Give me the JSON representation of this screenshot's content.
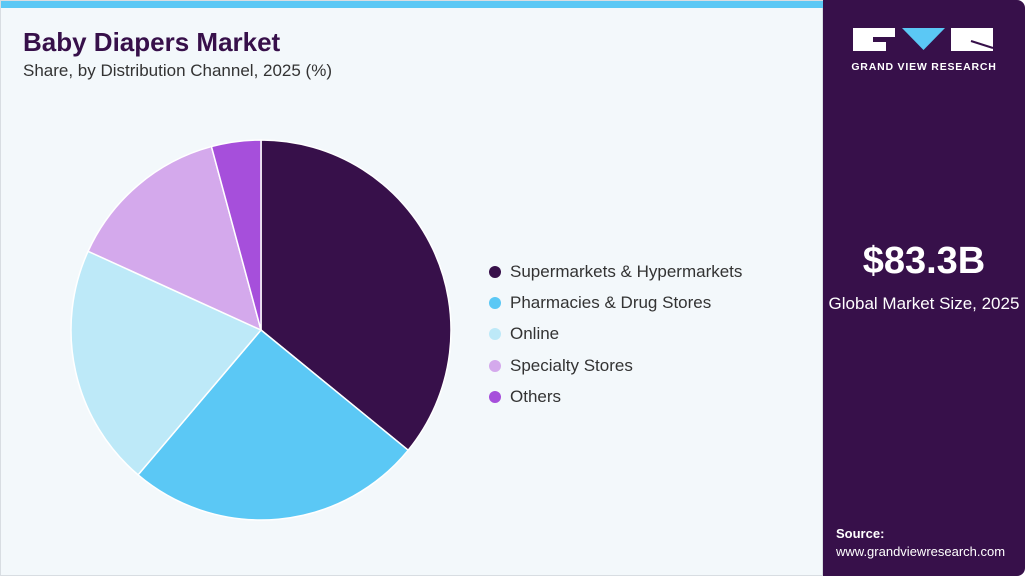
{
  "header": {
    "title": "Baby Diapers Market",
    "subtitle": "Share, by Distribution Channel, 2025 (%)"
  },
  "chart_data": {
    "type": "pie",
    "title": "Baby Diapers Market",
    "subtitle": "Share, by Distribution Channel, 2025 (%)",
    "legend_position": "right",
    "categories": [
      "Supermarkets & Hypermarkets",
      "Pharmacies & Drug Stores",
      "Online",
      "Specialty Stores",
      "Others"
    ],
    "values": [
      35.9,
      25.3,
      20.6,
      14.0,
      4.2
    ],
    "colors": [
      "#37104a",
      "#5bc8f5",
      "#bde9f8",
      "#d4a9ec",
      "#a64fdb"
    ]
  },
  "sidebar": {
    "logo_text": "GRAND VIEW RESEARCH",
    "market_size": "$83.3B",
    "market_size_label": "Global Market Size, 2025",
    "source_label": "Source:",
    "source_url": "www.grandviewresearch.com"
  }
}
